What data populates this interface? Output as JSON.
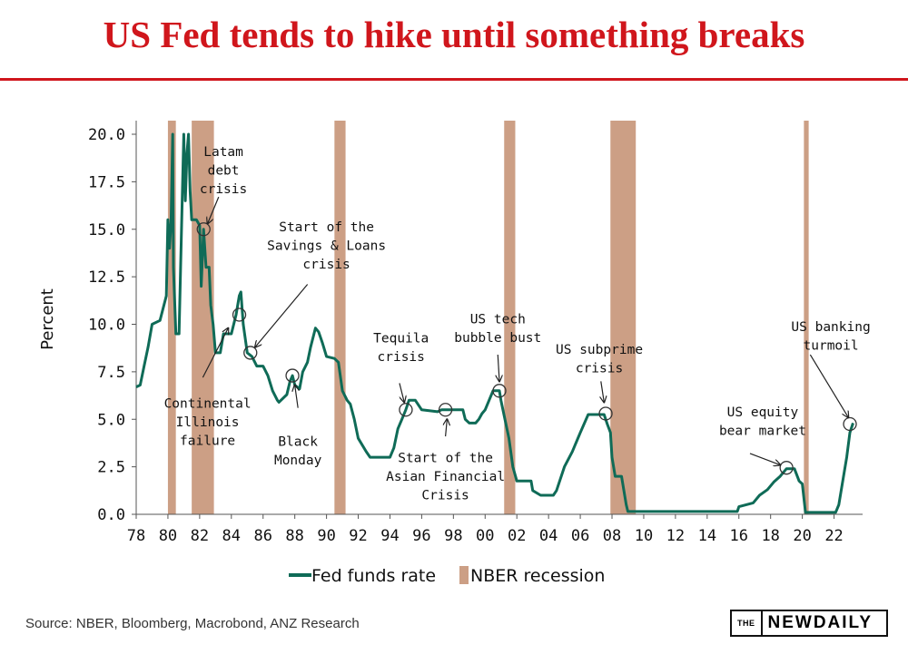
{
  "header": {
    "title": "US Fed tends to hike until something breaks"
  },
  "footer": {
    "source": "Source: NBER, Bloomberg, Macrobond, ANZ Research",
    "logo_the": "THE",
    "logo_name": "NEWDAILY"
  },
  "colors": {
    "title": "#d0161c",
    "line": "#0f6b57",
    "recession": "#cc9f85"
  },
  "chart_data": {
    "type": "line",
    "ylabel": "Percent",
    "ylim": [
      0,
      20
    ],
    "yticks": [
      "0.0",
      "2.5",
      "5.0",
      "7.5",
      "10.0",
      "12.5",
      "15.0",
      "17.5",
      "20.0"
    ],
    "xlim": [
      1978,
      2023.8
    ],
    "xticks": [
      "78",
      "80",
      "82",
      "84",
      "86",
      "88",
      "90",
      "92",
      "94",
      "96",
      "98",
      "00",
      "02",
      "04",
      "06",
      "08",
      "10",
      "12",
      "14",
      "16",
      "18",
      "20",
      "22"
    ],
    "legend": [
      {
        "name": "Fed funds rate",
        "kind": "line"
      },
      {
        "name": "NBER recession",
        "kind": "band"
      }
    ],
    "legend_position": "bottom",
    "recessions": [
      [
        1980.0,
        1980.5
      ],
      [
        1981.5,
        1982.9
      ],
      [
        1990.5,
        1991.2
      ],
      [
        2001.2,
        2001.9
      ],
      [
        2007.9,
        2009.5
      ],
      [
        2020.1,
        2020.4
      ]
    ],
    "series": [
      {
        "name": "Fed funds rate",
        "points": [
          [
            1978.0,
            6.7
          ],
          [
            1978.25,
            6.8
          ],
          [
            1978.5,
            7.8
          ],
          [
            1978.75,
            8.8
          ],
          [
            1979.0,
            10.0
          ],
          [
            1979.5,
            10.2
          ],
          [
            1979.9,
            11.5
          ],
          [
            1980.0,
            15.5
          ],
          [
            1980.1,
            14.0
          ],
          [
            1980.2,
            15.4
          ],
          [
            1980.3,
            20.0
          ],
          [
            1980.35,
            13.0
          ],
          [
            1980.5,
            9.5
          ],
          [
            1980.7,
            9.5
          ],
          [
            1980.8,
            13.0
          ],
          [
            1981.0,
            20.0
          ],
          [
            1981.1,
            16.5
          ],
          [
            1981.2,
            19.0
          ],
          [
            1981.3,
            20.0
          ],
          [
            1981.4,
            17.0
          ],
          [
            1981.5,
            15.5
          ],
          [
            1981.8,
            15.5
          ],
          [
            1982.0,
            15.2
          ],
          [
            1982.1,
            12.0
          ],
          [
            1982.25,
            15.0
          ],
          [
            1982.4,
            13.0
          ],
          [
            1982.6,
            13.0
          ],
          [
            1982.7,
            11.0
          ],
          [
            1982.85,
            10.0
          ],
          [
            1983.0,
            8.5
          ],
          [
            1983.3,
            8.5
          ],
          [
            1983.5,
            9.5
          ],
          [
            1984.0,
            9.5
          ],
          [
            1984.3,
            10.5
          ],
          [
            1984.5,
            11.5
          ],
          [
            1984.6,
            11.7
          ],
          [
            1984.75,
            10.0
          ],
          [
            1985.0,
            8.5
          ],
          [
            1985.3,
            8.3
          ],
          [
            1985.6,
            7.8
          ],
          [
            1986.0,
            7.8
          ],
          [
            1986.3,
            7.3
          ],
          [
            1986.6,
            6.5
          ],
          [
            1986.9,
            6.0
          ],
          [
            1987.0,
            5.9
          ],
          [
            1987.5,
            6.3
          ],
          [
            1987.7,
            7.0
          ],
          [
            1987.85,
            7.3
          ],
          [
            1988.0,
            6.8
          ],
          [
            1988.3,
            6.6
          ],
          [
            1988.5,
            7.5
          ],
          [
            1988.8,
            8.0
          ],
          [
            1989.0,
            8.8
          ],
          [
            1989.3,
            9.8
          ],
          [
            1989.5,
            9.6
          ],
          [
            1989.75,
            9.0
          ],
          [
            1990.0,
            8.3
          ],
          [
            1990.5,
            8.2
          ],
          [
            1990.75,
            8.0
          ],
          [
            1991.0,
            6.5
          ],
          [
            1991.3,
            6.0
          ],
          [
            1991.5,
            5.8
          ],
          [
            1991.75,
            5.0
          ],
          [
            1992.0,
            4.0
          ],
          [
            1992.5,
            3.3
          ],
          [
            1992.75,
            3.0
          ],
          [
            1993.0,
            3.0
          ],
          [
            1994.0,
            3.0
          ],
          [
            1994.25,
            3.5
          ],
          [
            1994.5,
            4.5
          ],
          [
            1994.75,
            5.0
          ],
          [
            1995.0,
            5.5
          ],
          [
            1995.2,
            6.0
          ],
          [
            1995.6,
            6.0
          ],
          [
            1996.0,
            5.5
          ],
          [
            1997.0,
            5.4
          ],
          [
            1997.25,
            5.5
          ],
          [
            1998.6,
            5.5
          ],
          [
            1998.75,
            5.0
          ],
          [
            1999.0,
            4.8
          ],
          [
            1999.4,
            4.8
          ],
          [
            1999.6,
            5.0
          ],
          [
            1999.8,
            5.3
          ],
          [
            2000.0,
            5.5
          ],
          [
            2000.5,
            6.5
          ],
          [
            2000.9,
            6.5
          ],
          [
            2001.0,
            6.0
          ],
          [
            2001.25,
            5.0
          ],
          [
            2001.5,
            4.0
          ],
          [
            2001.75,
            2.5
          ],
          [
            2002.0,
            1.75
          ],
          [
            2002.9,
            1.75
          ],
          [
            2003.0,
            1.25
          ],
          [
            2003.5,
            1.0
          ],
          [
            2004.3,
            1.0
          ],
          [
            2004.5,
            1.25
          ],
          [
            2005.0,
            2.5
          ],
          [
            2005.5,
            3.3
          ],
          [
            2006.0,
            4.3
          ],
          [
            2006.5,
            5.25
          ],
          [
            2007.5,
            5.25
          ],
          [
            2007.7,
            4.75
          ],
          [
            2007.9,
            4.3
          ],
          [
            2008.0,
            3.0
          ],
          [
            2008.2,
            2.0
          ],
          [
            2008.6,
            2.0
          ],
          [
            2008.9,
            0.5
          ],
          [
            2009.0,
            0.15
          ],
          [
            2015.9,
            0.15
          ],
          [
            2016.0,
            0.4
          ],
          [
            2016.9,
            0.6
          ],
          [
            2017.3,
            1.0
          ],
          [
            2017.8,
            1.3
          ],
          [
            2018.2,
            1.7
          ],
          [
            2018.6,
            2.0
          ],
          [
            2019.0,
            2.4
          ],
          [
            2019.5,
            2.4
          ],
          [
            2019.8,
            1.75
          ],
          [
            2020.0,
            1.6
          ],
          [
            2020.2,
            0.1
          ],
          [
            2022.1,
            0.1
          ],
          [
            2022.3,
            0.5
          ],
          [
            2022.6,
            2.0
          ],
          [
            2022.8,
            3.0
          ],
          [
            2023.0,
            4.3
          ],
          [
            2023.2,
            4.8
          ]
        ]
      }
    ],
    "markers": [
      [
        1982.25,
        15.0
      ],
      [
        1984.5,
        10.5
      ],
      [
        1985.2,
        8.5
      ],
      [
        1987.85,
        7.3
      ],
      [
        1995.0,
        5.5
      ],
      [
        1997.5,
        5.5
      ],
      [
        2000.9,
        6.5
      ],
      [
        2007.6,
        5.3
      ],
      [
        2019.0,
        2.45
      ],
      [
        2023.0,
        4.75
      ]
    ],
    "annotations": [
      {
        "lines": [
          "Latam",
          "debt",
          "crisis"
        ],
        "x": 1983.5,
        "y": 18.85,
        "arrow": [
          [
            1983.2,
            16.7
          ],
          [
            1982.5,
            15.3
          ]
        ]
      },
      {
        "lines": [
          "Start of the",
          "Savings & Loans",
          "crisis"
        ],
        "x": 1990.0,
        "y": 14.9,
        "arrow": [
          [
            1988.8,
            12.1
          ],
          [
            1985.5,
            8.8
          ]
        ]
      },
      {
        "lines": [
          "Continental",
          "Illinois",
          "failure"
        ],
        "x": 1982.5,
        "y": 5.6,
        "arrow": [
          [
            1982.2,
            7.2
          ],
          [
            1983.8,
            9.8
          ]
        ]
      },
      {
        "lines": [
          "Black",
          "Monday"
        ],
        "x": 1988.2,
        "y": 3.6,
        "arrow": [
          [
            1988.2,
            5.6
          ],
          [
            1988.0,
            6.8
          ]
        ]
      },
      {
        "lines": [
          "Tequila",
          "crisis"
        ],
        "x": 1994.7,
        "y": 9.05,
        "arrow": [
          [
            1994.6,
            6.9
          ],
          [
            1994.9,
            5.9
          ]
        ]
      },
      {
        "lines": [
          "US tech",
          "bubble bust"
        ],
        "x": 2000.8,
        "y": 10.05,
        "arrow": [
          [
            2000.8,
            8.4
          ],
          [
            2000.9,
            7.0
          ]
        ]
      },
      {
        "lines": [
          "Start of the",
          "Asian Financial",
          "Crisis"
        ],
        "x": 1997.5,
        "y": 2.75,
        "arrow": [
          [
            1997.5,
            4.1
          ],
          [
            1997.6,
            5.0
          ]
        ]
      },
      {
        "lines": [
          "US subprime",
          "crisis"
        ],
        "x": 2007.2,
        "y": 8.45,
        "arrow": [
          [
            2007.3,
            7.0
          ],
          [
            2007.5,
            5.9
          ]
        ]
      },
      {
        "lines": [
          "US equity",
          "bear market"
        ],
        "x": 2017.5,
        "y": 5.15,
        "arrow": [
          [
            2016.7,
            3.2
          ],
          [
            2018.6,
            2.6
          ]
        ]
      },
      {
        "lines": [
          "US banking",
          "turmoil"
        ],
        "x": 2021.8,
        "y": 9.65,
        "arrow": [
          [
            2020.5,
            8.4
          ],
          [
            2022.9,
            5.1
          ]
        ]
      }
    ]
  }
}
